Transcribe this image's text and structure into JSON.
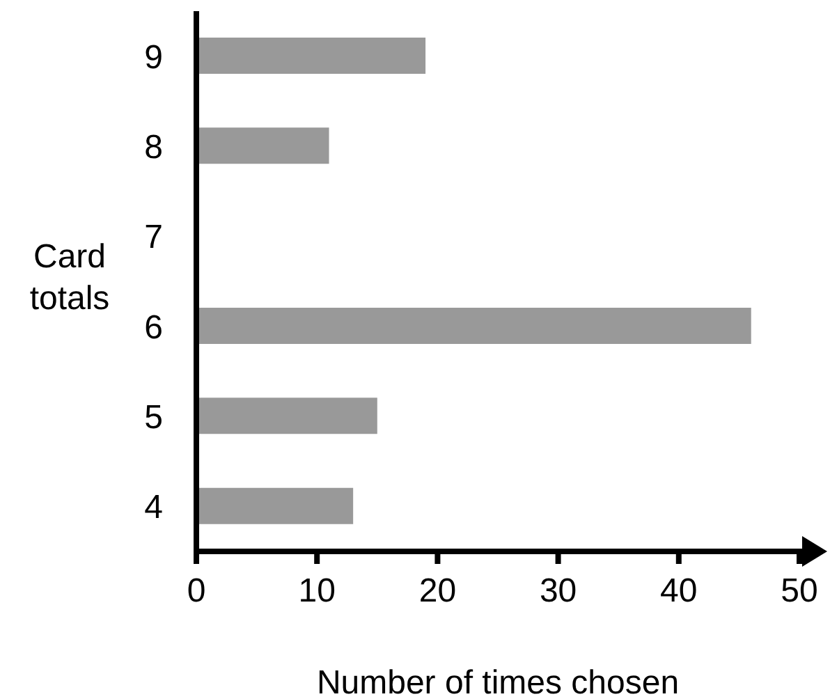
{
  "chart_data": {
    "type": "bar",
    "orientation": "horizontal",
    "categories": [
      "9",
      "8",
      "7",
      "6",
      "5",
      "4"
    ],
    "values": [
      19,
      11,
      0,
      46,
      15,
      13
    ],
    "color": "#999999",
    "xlim": [
      0,
      50
    ],
    "xticks": [
      0,
      10,
      20,
      30,
      40,
      50
    ],
    "xlabel": "Number of times chosen",
    "ylabel": "Card totals",
    "grid": false
  }
}
